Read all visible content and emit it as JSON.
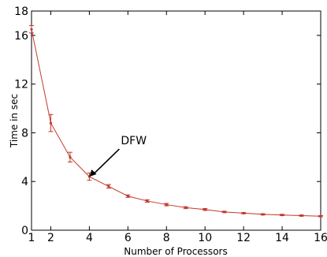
{
  "chart_data": {
    "type": "line",
    "title": "",
    "xlabel": "Number of Processors",
    "ylabel": "Time in sec",
    "xlim": [
      1,
      16
    ],
    "ylim": [
      0,
      18
    ],
    "x_ticks": [
      1,
      2,
      4,
      6,
      8,
      10,
      12,
      14,
      16
    ],
    "y_ticks": [
      0,
      4,
      8,
      12,
      16,
      18
    ],
    "grid": false,
    "series": [
      {
        "color": "#c0392b",
        "x": [
          1,
          2,
          3,
          4,
          5,
          6,
          7,
          8,
          9,
          10,
          11,
          12,
          13,
          14,
          15,
          16
        ],
        "y": [
          16.5,
          8.8,
          6.0,
          4.4,
          3.6,
          2.8,
          2.4,
          2.1,
          1.85,
          1.7,
          1.5,
          1.4,
          1.3,
          1.25,
          1.2,
          1.15
        ],
        "err": [
          0.3,
          0.7,
          0.4,
          0.3,
          0.15,
          0.1,
          0.1,
          0.1,
          0.08,
          0.08,
          0.06,
          0.05,
          0.05,
          0.05,
          0.05,
          0.05
        ]
      }
    ],
    "annotation": {
      "text": "DFW",
      "x": 4,
      "y": 4.4
    }
  }
}
